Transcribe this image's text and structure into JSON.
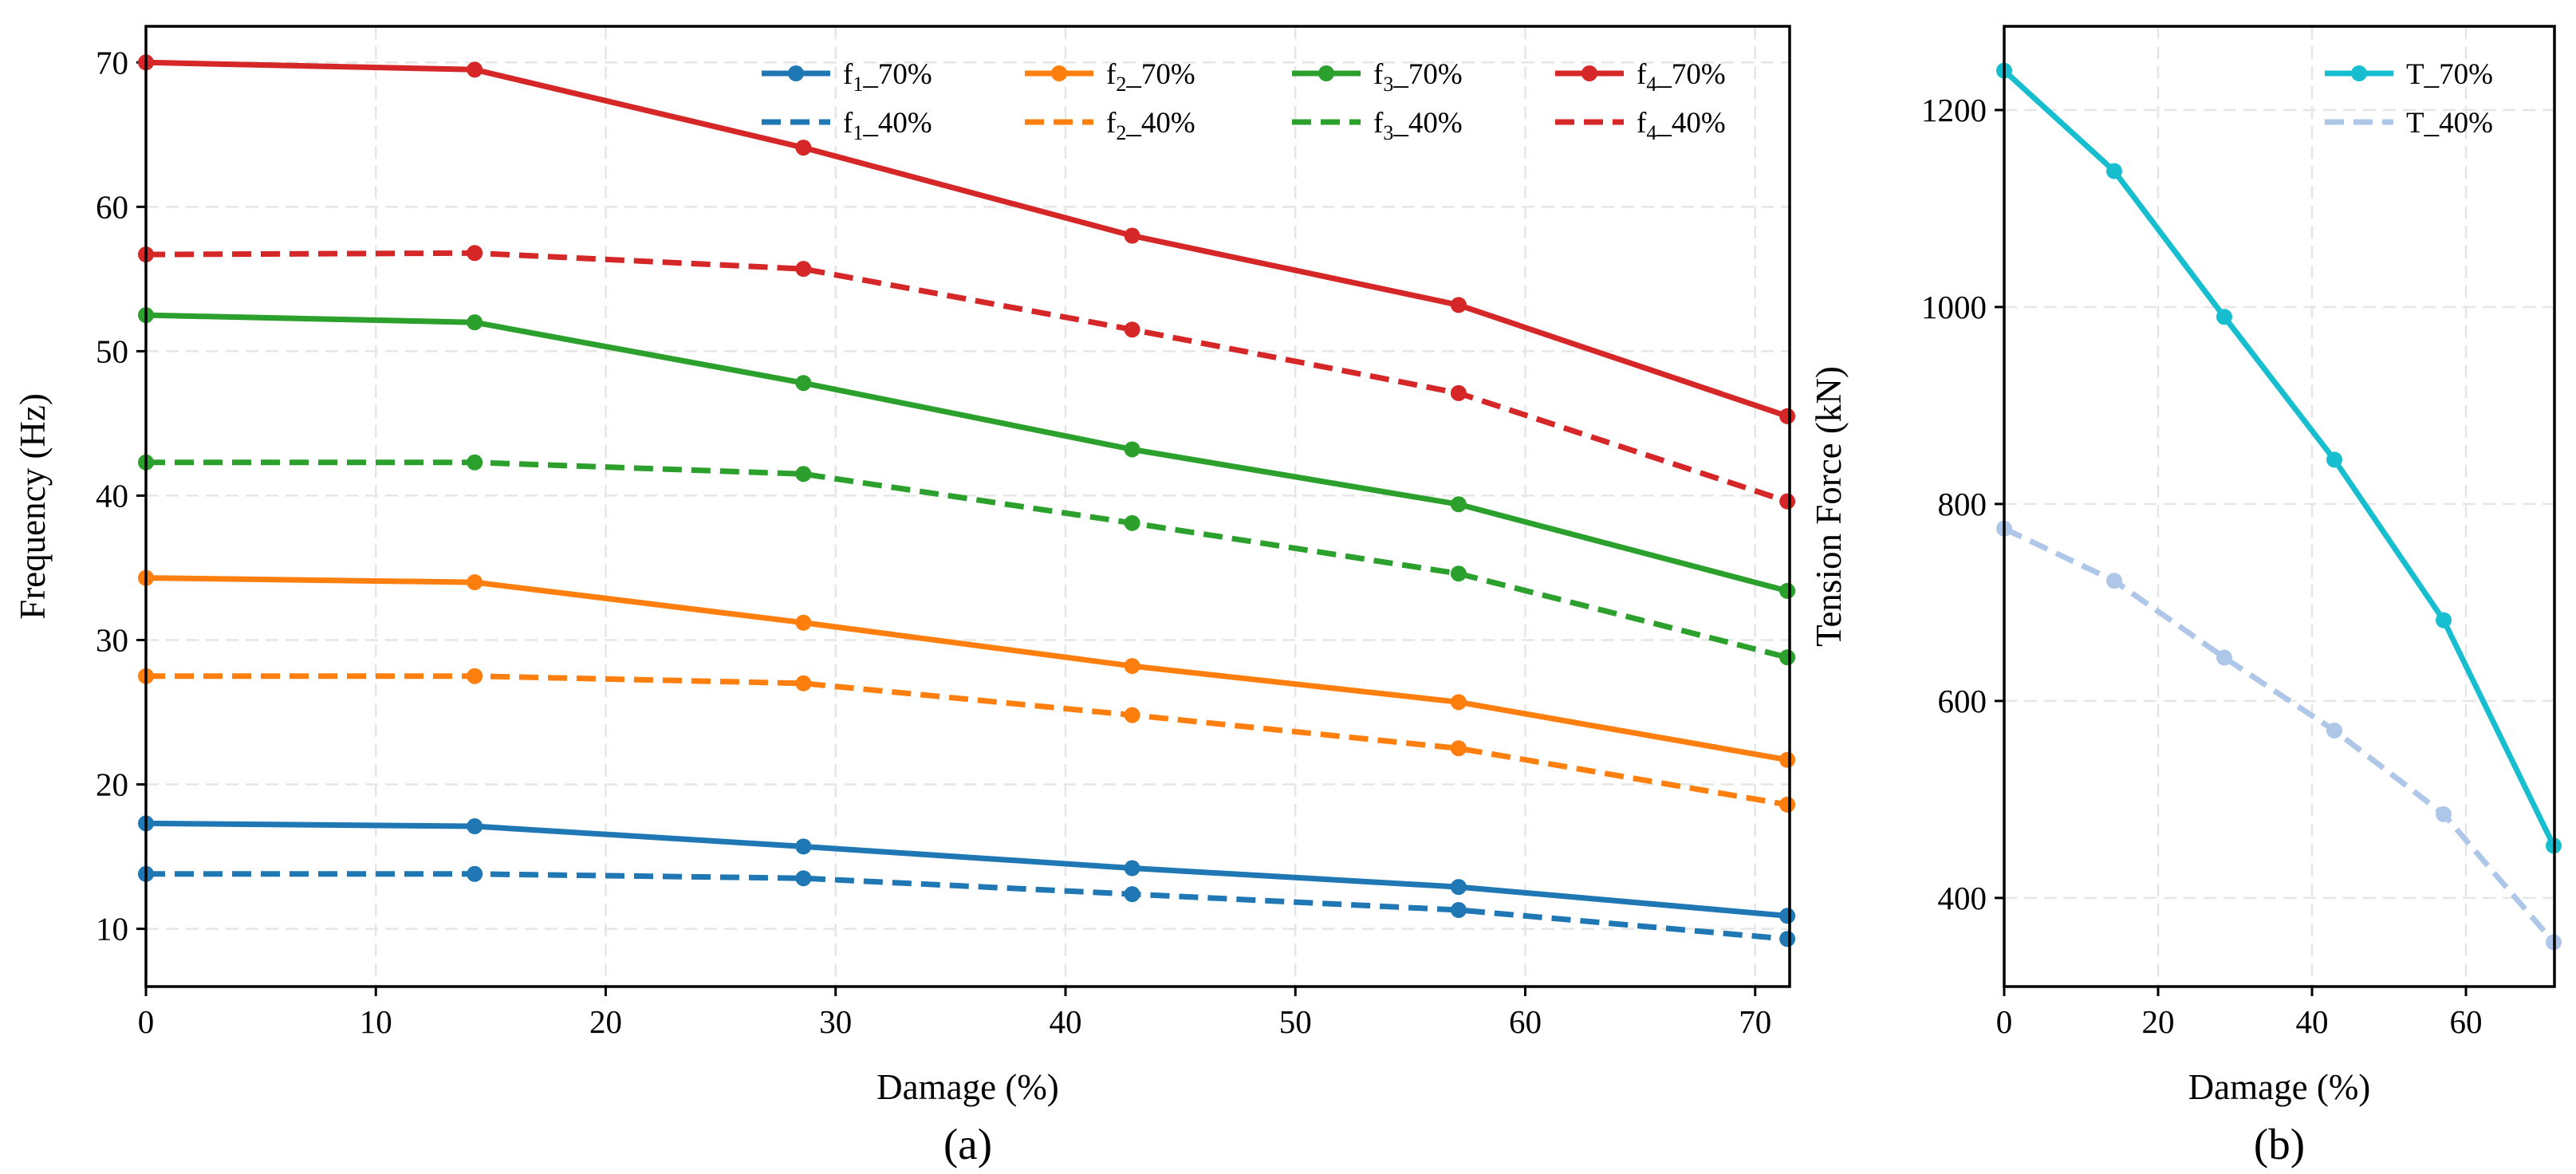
{
  "chart_data": [
    {
      "type": "line",
      "caption": "(a)",
      "xlabel": "Damage (%)",
      "ylabel": "Frequency (Hz)",
      "xlim": [
        0,
        71.5
      ],
      "ylim": [
        6,
        72.5
      ],
      "xticks": [
        0,
        10,
        20,
        30,
        40,
        50,
        60,
        70
      ],
      "yticks": [
        10,
        20,
        30,
        40,
        50,
        60,
        70
      ],
      "grid": true,
      "legend_position": "top-right",
      "x": [
        0,
        14.3,
        28.6,
        42.9,
        57.1,
        71.4
      ],
      "series": [
        {
          "base": "f",
          "sub": "1",
          "suffix": "_70%",
          "color": "#1f77b4",
          "style": "solid",
          "values": [
            17.3,
            17.1,
            15.7,
            14.2,
            12.9,
            10.9
          ]
        },
        {
          "base": "f",
          "sub": "1",
          "suffix": "_40%",
          "color": "#1f77b4",
          "style": "dashed",
          "values": [
            13.8,
            13.8,
            13.5,
            12.4,
            11.3,
            9.3
          ]
        },
        {
          "base": "f",
          "sub": "2",
          "suffix": "_70%",
          "color": "#ff7f0e",
          "style": "solid",
          "values": [
            34.3,
            34.0,
            31.2,
            28.2,
            25.7,
            21.7
          ]
        },
        {
          "base": "f",
          "sub": "2",
          "suffix": "_40%",
          "color": "#ff7f0e",
          "style": "dashed",
          "values": [
            27.5,
            27.5,
            27.0,
            24.8,
            22.5,
            18.6
          ]
        },
        {
          "base": "f",
          "sub": "3",
          "suffix": "_70%",
          "color": "#2ca02c",
          "style": "solid",
          "values": [
            52.5,
            52.0,
            47.8,
            43.2,
            39.4,
            33.4
          ]
        },
        {
          "base": "f",
          "sub": "3",
          "suffix": "_40%",
          "color": "#2ca02c",
          "style": "dashed",
          "values": [
            42.3,
            42.3,
            41.5,
            38.1,
            34.6,
            28.8
          ]
        },
        {
          "base": "f",
          "sub": "4",
          "suffix": "_70%",
          "color": "#d62728",
          "style": "solid",
          "values": [
            70.0,
            69.5,
            64.1,
            58.0,
            53.2,
            45.5
          ]
        },
        {
          "base": "f",
          "sub": "4",
          "suffix": "_40%",
          "color": "#d62728",
          "style": "dashed",
          "values": [
            56.7,
            56.8,
            55.7,
            51.5,
            47.1,
            39.6
          ]
        }
      ]
    },
    {
      "type": "line",
      "caption": "(b)",
      "xlabel": "Damage (%)",
      "ylabel": "Tension Force (kN)",
      "xlim": [
        0,
        71.5
      ],
      "ylim": [
        310,
        1285
      ],
      "xticks": [
        0,
        20,
        40,
        60
      ],
      "yticks": [
        400,
        600,
        800,
        1000,
        1200
      ],
      "grid": true,
      "legend_position": "top-right",
      "x": [
        0,
        14.3,
        28.6,
        42.9,
        57.1,
        71.4
      ],
      "series": [
        {
          "base": "T",
          "sub": "",
          "suffix": "_70%",
          "color": "#17becf",
          "style": "solid",
          "values": [
            1240,
            1138,
            990,
            845,
            682,
            453
          ]
        },
        {
          "base": "T",
          "sub": "",
          "suffix": "_40%",
          "color": "#aec7e8",
          "style": "dashed",
          "values": [
            775,
            722,
            644,
            570,
            485,
            355
          ]
        }
      ]
    }
  ]
}
